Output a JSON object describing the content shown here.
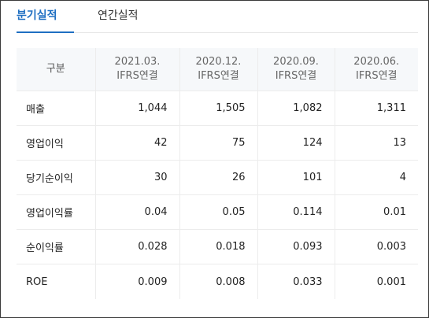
{
  "tabs": [
    {
      "label": "분기실적",
      "active": true
    },
    {
      "label": "연간실적",
      "active": false
    }
  ],
  "table": {
    "corner_label": "구분",
    "columns": [
      {
        "period": "2021.03.",
        "basis": "IFRS연결"
      },
      {
        "period": "2020.12.",
        "basis": "IFRS연결"
      },
      {
        "period": "2020.09.",
        "basis": "IFRS연결"
      },
      {
        "period": "2020.06.",
        "basis": "IFRS연결"
      }
    ],
    "rows": [
      {
        "label": "매출",
        "values": [
          "1,044",
          "1,505",
          "1,082",
          "1,311"
        ]
      },
      {
        "label": "영업이익",
        "values": [
          "42",
          "75",
          "124",
          "13"
        ]
      },
      {
        "label": "당기순이익",
        "values": [
          "30",
          "26",
          "101",
          "4"
        ]
      },
      {
        "label": "영업이익률",
        "values": [
          "0.04",
          "0.05",
          "0.114",
          "0.01"
        ]
      },
      {
        "label": "순이익률",
        "values": [
          "0.028",
          "0.018",
          "0.093",
          "0.003"
        ]
      },
      {
        "label": "ROE",
        "values": [
          "0.009",
          "0.008",
          "0.033",
          "0.001"
        ]
      }
    ]
  },
  "colors": {
    "accent": "#1f6fc2",
    "header_bg": "#f6f8fa",
    "border": "#ececec"
  }
}
